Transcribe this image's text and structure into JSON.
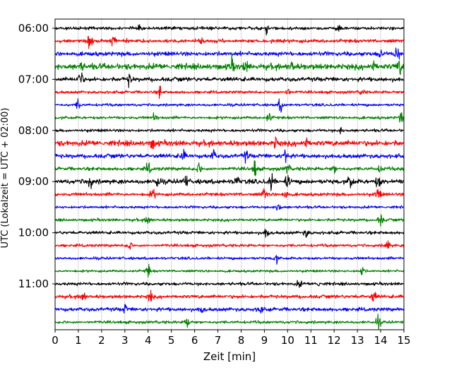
{
  "chart_data": {
    "type": "line",
    "title": "",
    "xlabel": "Zeit  [min]",
    "ylabel": "UTC (Lokalzeit = UTC + 02:00)",
    "xlim": [
      0,
      15
    ],
    "x_ticks": [
      "0",
      "1",
      "2",
      "3",
      "4",
      "5",
      "6",
      "7",
      "8",
      "9",
      "10",
      "11",
      "12",
      "13",
      "14",
      "15"
    ],
    "y_ticks": [
      {
        "time": "06:00",
        "row": 0
      },
      {
        "time": "07:00",
        "row": 4
      },
      {
        "time": "08:00",
        "row": 8
      },
      {
        "time": "09:00",
        "row": 12
      },
      {
        "time": "10:00",
        "row": 16
      },
      {
        "time": "11:00",
        "row": 20
      }
    ],
    "vertical_grid": true,
    "row_interval_minutes": 15,
    "colors": [
      "#000000",
      "#ff0000",
      "#0000ff",
      "#008000"
    ],
    "traces": [
      {
        "start": "06:00",
        "color": "#000000",
        "level": 0.35,
        "bursts": [
          [
            3.6,
            0.4
          ],
          [
            9.1,
            0.6
          ],
          [
            12.2,
            0.6
          ]
        ]
      },
      {
        "start": "06:15",
        "color": "#ff0000",
        "level": 0.45,
        "bursts": [
          [
            1.5,
            1.0
          ],
          [
            2.5,
            0.7
          ],
          [
            3.1,
            0.5
          ],
          [
            6.3,
            0.4
          ]
        ]
      },
      {
        "start": "06:30",
        "color": "#0000ff",
        "level": 0.6,
        "bursts": [
          [
            14.0,
            0.6
          ],
          [
            14.7,
            1.0
          ]
        ]
      },
      {
        "start": "06:45",
        "color": "#008000",
        "level": 1.0,
        "bursts": [
          [
            1.1,
            0.6
          ],
          [
            7.6,
            1.0
          ],
          [
            8.2,
            0.7
          ],
          [
            10.2,
            0.6
          ],
          [
            13.7,
            0.7
          ],
          [
            14.8,
            1.0
          ]
        ]
      },
      {
        "start": "07:00",
        "color": "#000000",
        "level": 0.6,
        "bursts": [
          [
            1.1,
            1.2
          ],
          [
            3.2,
            0.7
          ]
        ]
      },
      {
        "start": "07:15",
        "color": "#ff0000",
        "level": 0.3,
        "bursts": [
          [
            4.5,
            0.8
          ],
          [
            10.0,
            0.6
          ],
          [
            13.2,
            0.4
          ]
        ]
      },
      {
        "start": "07:30",
        "color": "#0000ff",
        "level": 0.25,
        "bursts": [
          [
            1.0,
            0.7
          ],
          [
            9.7,
            1.0
          ]
        ]
      },
      {
        "start": "07:45",
        "color": "#008000",
        "level": 0.3,
        "bursts": [
          [
            4.3,
            0.6
          ],
          [
            9.2,
            0.6
          ],
          [
            14.9,
            1.0
          ]
        ]
      },
      {
        "start": "08:00",
        "color": "#000000",
        "level": 0.3,
        "bursts": [
          [
            12.3,
            0.4
          ]
        ]
      },
      {
        "start": "08:15",
        "color": "#ff0000",
        "level": 0.9,
        "bursts": [
          [
            4.2,
            0.7
          ],
          [
            9.5,
            0.8
          ],
          [
            10.8,
            0.7
          ]
        ]
      },
      {
        "start": "08:30",
        "color": "#0000ff",
        "level": 0.6,
        "bursts": [
          [
            5.5,
            0.8
          ],
          [
            6.8,
            0.7
          ],
          [
            8.2,
            0.8
          ],
          [
            9.9,
            1.3
          ]
        ]
      },
      {
        "start": "08:45",
        "color": "#008000",
        "level": 0.45,
        "bursts": [
          [
            4.0,
            0.8
          ],
          [
            6.2,
            0.8
          ],
          [
            8.6,
            1.2
          ],
          [
            10.0,
            0.6
          ],
          [
            12.0,
            0.5
          ],
          [
            14.0,
            0.5
          ]
        ]
      },
      {
        "start": "09:00",
        "color": "#000000",
        "level": 0.7,
        "bursts": [
          [
            1.5,
            1.0
          ],
          [
            4.4,
            0.8
          ],
          [
            5.6,
            0.9
          ],
          [
            7.8,
            0.8
          ],
          [
            9.3,
            1.3
          ],
          [
            10.0,
            0.8
          ],
          [
            12.7,
            1.0
          ],
          [
            13.9,
            1.0
          ]
        ]
      },
      {
        "start": "09:15",
        "color": "#ff0000",
        "level": 0.4,
        "bursts": [
          [
            4.2,
            0.8
          ],
          [
            9.0,
            0.8
          ],
          [
            9.9,
            0.7
          ],
          [
            13.9,
            0.9
          ]
        ]
      },
      {
        "start": "09:30",
        "color": "#0000ff",
        "level": 0.25,
        "bursts": [
          [
            9.6,
            0.8
          ]
        ]
      },
      {
        "start": "09:45",
        "color": "#008000",
        "level": 0.3,
        "bursts": [
          [
            4.0,
            0.8
          ],
          [
            14.0,
            0.9
          ]
        ]
      },
      {
        "start": "10:00",
        "color": "#000000",
        "level": 0.35,
        "bursts": [
          [
            9.1,
            0.8
          ],
          [
            10.8,
            0.6
          ]
        ]
      },
      {
        "start": "10:15",
        "color": "#ff0000",
        "level": 0.3,
        "bursts": [
          [
            3.2,
            0.6
          ],
          [
            14.3,
            0.9
          ]
        ]
      },
      {
        "start": "10:30",
        "color": "#0000ff",
        "level": 0.25,
        "bursts": [
          [
            9.5,
            0.6
          ]
        ]
      },
      {
        "start": "10:45",
        "color": "#008000",
        "level": 0.2,
        "bursts": [
          [
            4.0,
            0.9
          ],
          [
            13.2,
            0.8
          ]
        ]
      },
      {
        "start": "11:00",
        "color": "#000000",
        "level": 0.35,
        "bursts": [
          [
            10.5,
            0.5
          ],
          [
            11.3,
            0.4
          ]
        ]
      },
      {
        "start": "11:15",
        "color": "#ff0000",
        "level": 0.45,
        "bursts": [
          [
            1.2,
            0.8
          ],
          [
            4.1,
            0.8
          ],
          [
            13.7,
            0.8
          ]
        ]
      },
      {
        "start": "11:30",
        "color": "#0000ff",
        "level": 0.5,
        "bursts": [
          [
            3.0,
            0.6
          ],
          [
            6.3,
            0.5
          ],
          [
            8.8,
            0.6
          ]
        ]
      },
      {
        "start": "11:45",
        "color": "#008000",
        "level": 0.3,
        "bursts": [
          [
            5.7,
            0.8
          ],
          [
            13.9,
            0.9
          ]
        ]
      }
    ]
  }
}
